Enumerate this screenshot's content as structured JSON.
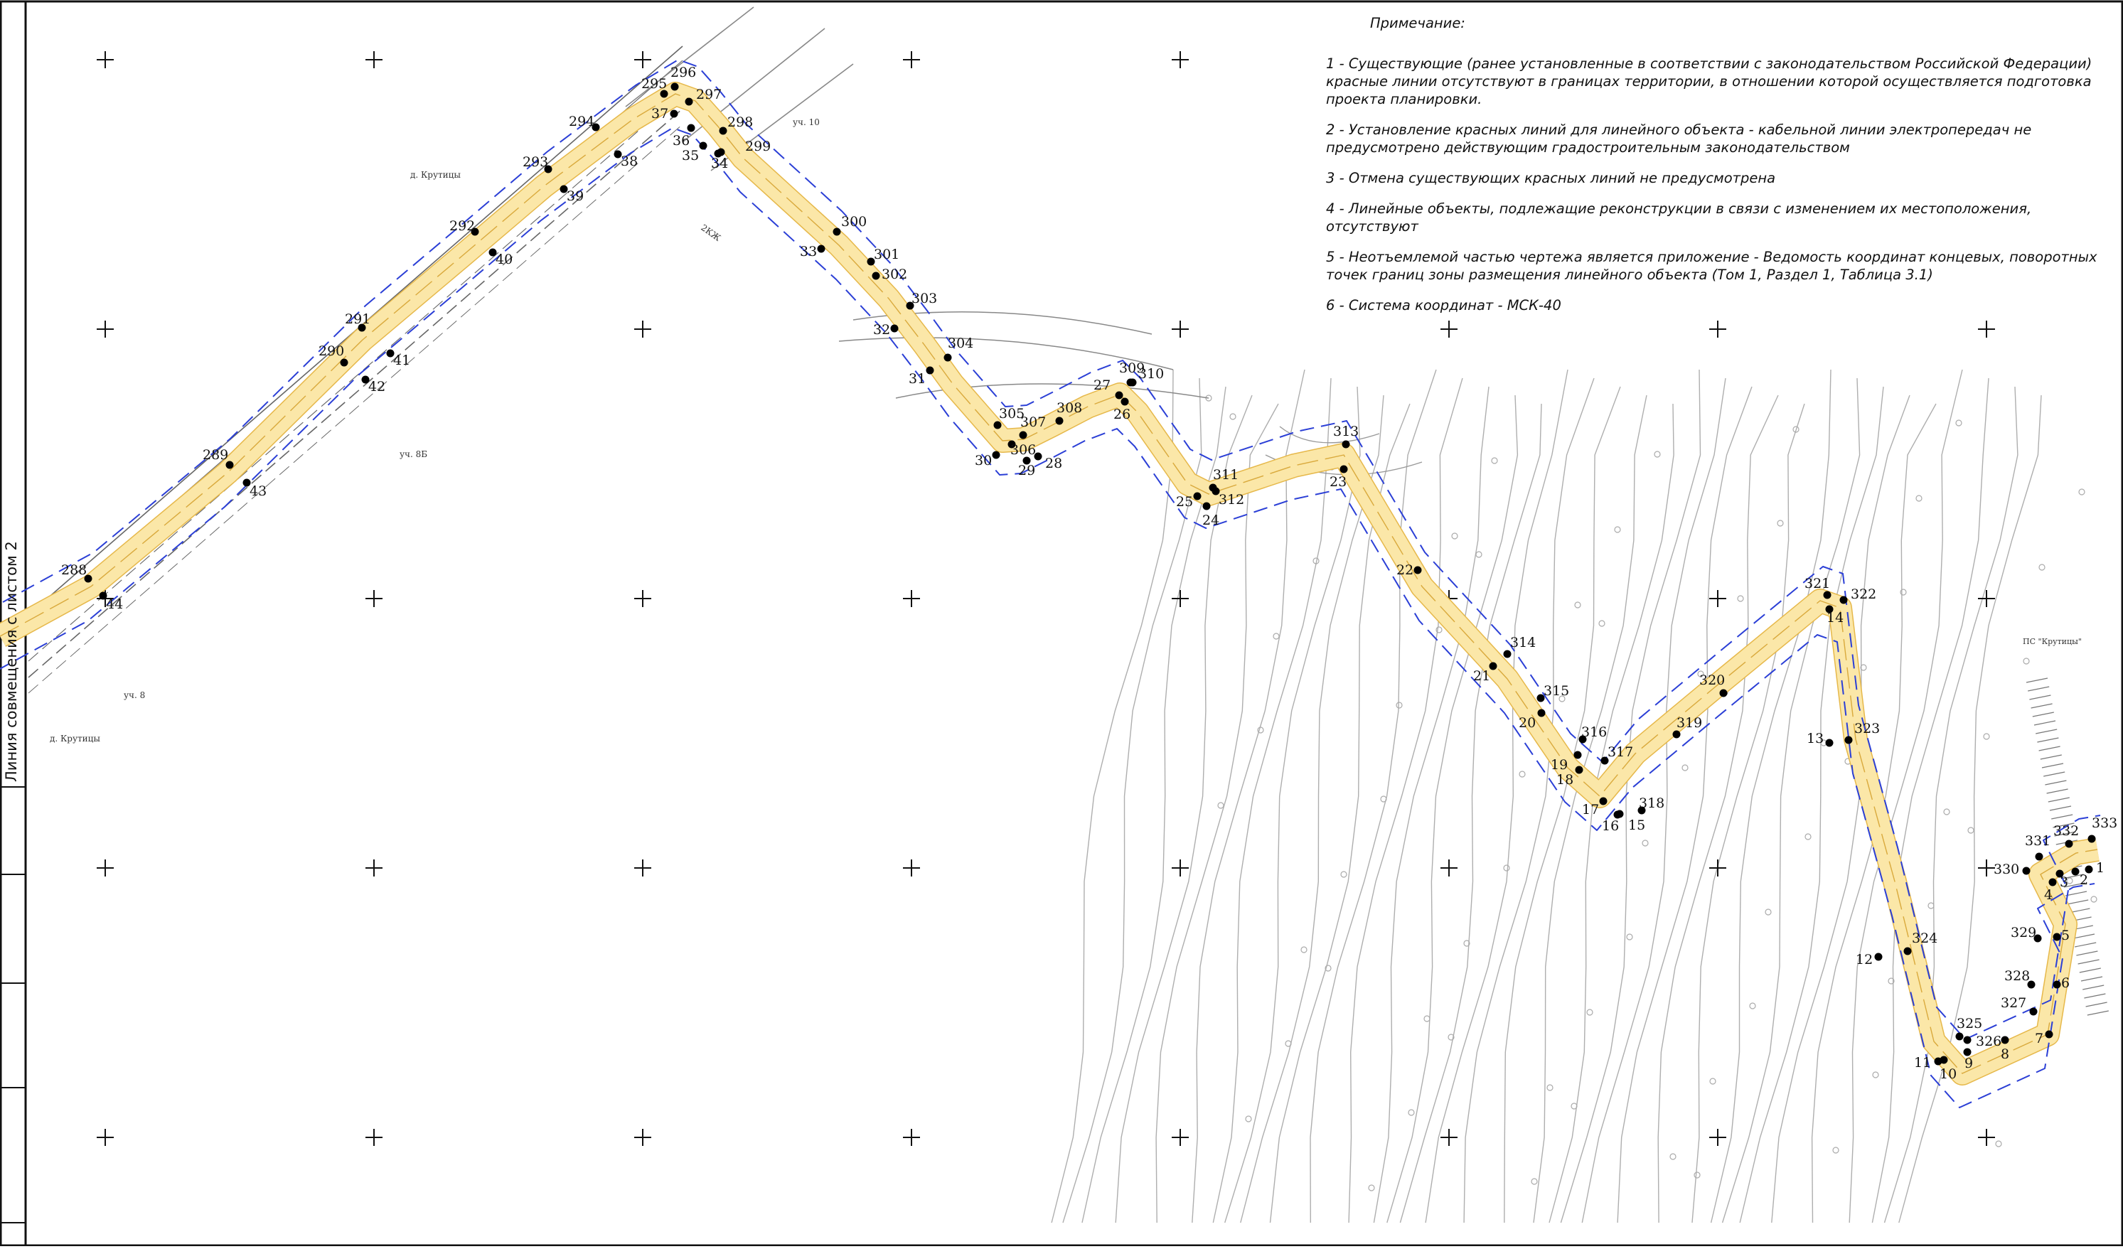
{
  "note": {
    "title": "Примечание:",
    "items": [
      "1 - Существующие (ранее установленные в соответствии с законодательством Российской Федерации) красные линии отсутствуют в границах территории, в отношении которой осуществляется подготовка проекта планировки.",
      "2 - Установление красных линий для линейного объекта - кабельной линии электропередач не предусмотрено действующим градостроительным законодательством",
      "3 - Отмена существующих красных линий не предусмотрена",
      "4 - Линейные объекты, подлежащие реконструкции в связи с изменением их местоположения, отсутствуют",
      "5 - Неотъемлемой частью чертежа является приложение - Ведомость координат концевых, поворотных точек границ зоны размещения линейного объекта (Том 1, Раздел 1, Таблица 3.1)",
      "6 - Система координат - МСК-40"
    ]
  },
  "side_label": "Линия совмещения с листом 2",
  "map_labels": {
    "village_top": "д. Крутицы",
    "village_bottom": "д. Крутицы",
    "plot_10": "уч. 10",
    "plot_8b": "уч. 8Б",
    "plot_8": "уч. 8",
    "kzh": "2КЖ",
    "ps": "ПС \"Крутицы\""
  },
  "points": [
    {
      "n": "288"
    },
    {
      "n": "44"
    },
    {
      "n": "289"
    },
    {
      "n": "43"
    },
    {
      "n": "290"
    },
    {
      "n": "291"
    },
    {
      "n": "41"
    },
    {
      "n": "42"
    },
    {
      "n": "292"
    },
    {
      "n": "40"
    },
    {
      "n": "293"
    },
    {
      "n": "39"
    },
    {
      "n": "294"
    },
    {
      "n": "38"
    },
    {
      "n": "295"
    },
    {
      "n": "296"
    },
    {
      "n": "297"
    },
    {
      "n": "37"
    },
    {
      "n": "36"
    },
    {
      "n": "298"
    },
    {
      "n": "35"
    },
    {
      "n": "299"
    },
    {
      "n": "34"
    },
    {
      "n": "300"
    },
    {
      "n": "33"
    },
    {
      "n": "301"
    },
    {
      "n": "302"
    },
    {
      "n": "303"
    },
    {
      "n": "32"
    },
    {
      "n": "304"
    },
    {
      "n": "31"
    },
    {
      "n": "305"
    },
    {
      "n": "307"
    },
    {
      "n": "308"
    },
    {
      "n": "306"
    },
    {
      "n": "30"
    },
    {
      "n": "29"
    },
    {
      "n": "28"
    },
    {
      "n": "27"
    },
    {
      "n": "309"
    },
    {
      "n": "310"
    },
    {
      "n": "26"
    },
    {
      "n": "311"
    },
    {
      "n": "312"
    },
    {
      "n": "25"
    },
    {
      "n": "24"
    },
    {
      "n": "313"
    },
    {
      "n": "23"
    },
    {
      "n": "22"
    },
    {
      "n": "314"
    },
    {
      "n": "21"
    },
    {
      "n": "315"
    },
    {
      "n": "20"
    },
    {
      "n": "316"
    },
    {
      "n": "317"
    },
    {
      "n": "19"
    },
    {
      "n": "18"
    },
    {
      "n": "17"
    },
    {
      "n": "16"
    },
    {
      "n": "15"
    },
    {
      "n": "318"
    },
    {
      "n": "319"
    },
    {
      "n": "320"
    },
    {
      "n": "321"
    },
    {
      "n": "14"
    },
    {
      "n": "322"
    },
    {
      "n": "13"
    },
    {
      "n": "323"
    },
    {
      "n": "12"
    },
    {
      "n": "324"
    },
    {
      "n": "11"
    },
    {
      "n": "10"
    },
    {
      "n": "325"
    },
    {
      "n": "326"
    },
    {
      "n": "9"
    },
    {
      "n": "8"
    },
    {
      "n": "7"
    },
    {
      "n": "327"
    },
    {
      "n": "328"
    },
    {
      "n": "6"
    },
    {
      "n": "329"
    },
    {
      "n": "5"
    },
    {
      "n": "330"
    },
    {
      "n": "331"
    },
    {
      "n": "332"
    },
    {
      "n": "333"
    },
    {
      "n": "3"
    },
    {
      "n": "4"
    },
    {
      "n": "2"
    },
    {
      "n": "1"
    }
  ],
  "colors": {
    "corridor_fill": "#fbe7a8",
    "corridor_edge": "#e6b84a",
    "boundary": "#2b3fd6",
    "terrain": "#9a9a9a",
    "ink": "#111111"
  }
}
